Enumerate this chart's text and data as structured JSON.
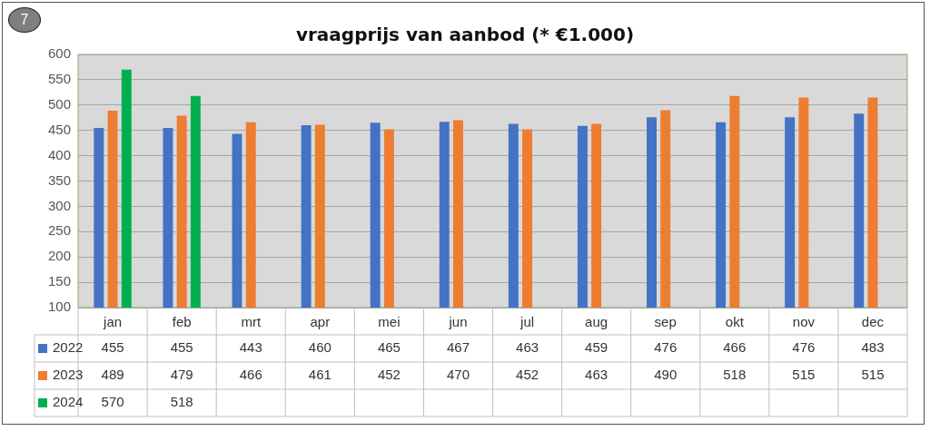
{
  "chart_data": {
    "type": "bar",
    "title": "vraagprijs van aanbod (* €1.000)",
    "annotations": [
      "7"
    ],
    "categories": [
      "jan",
      "feb",
      "mrt",
      "apr",
      "mei",
      "jun",
      "jul",
      "aug",
      "sep",
      "okt",
      "nov",
      "dec"
    ],
    "series": [
      {
        "name": "2022",
        "color": "#4472c4",
        "values": [
          455,
          455,
          443,
          460,
          465,
          467,
          463,
          459,
          476,
          466,
          476,
          483
        ]
      },
      {
        "name": "2023",
        "color": "#ed7d31",
        "values": [
          489,
          479,
          466,
          461,
          452,
          470,
          452,
          463,
          490,
          518,
          515,
          515
        ]
      },
      {
        "name": "2024",
        "color": "#00b050",
        "values": [
          570,
          518,
          null,
          null,
          null,
          null,
          null,
          null,
          null,
          null,
          null,
          null
        ]
      }
    ],
    "ylim": [
      100,
      600
    ],
    "yticks": [
      100,
      150,
      200,
      250,
      300,
      350,
      400,
      450,
      500,
      550,
      600
    ],
    "grid": "y",
    "legend": "bottom",
    "data_labels": true
  }
}
